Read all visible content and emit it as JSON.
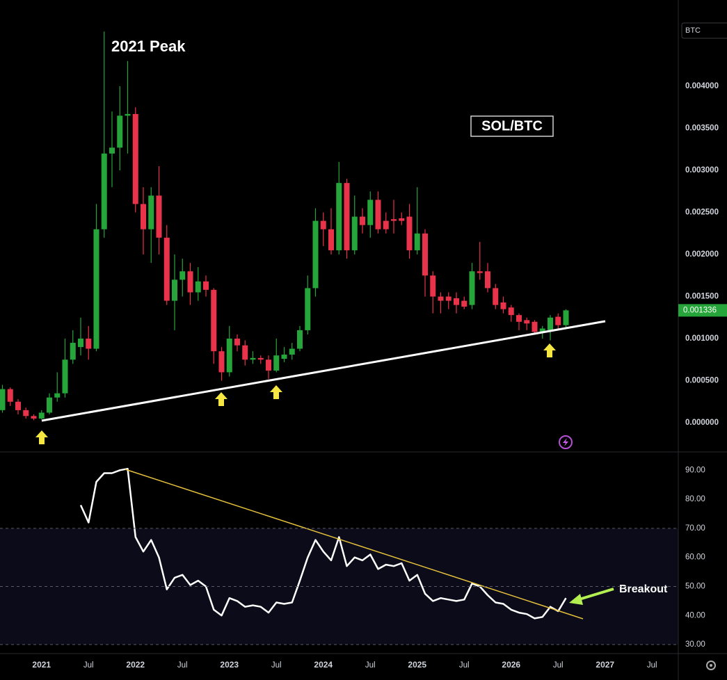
{
  "chart_data": [
    {
      "type": "candlestick",
      "title": "SOL/BTC",
      "annotation": "2021 Peak",
      "currency": "BTC",
      "up_color": "#26a63a",
      "down_color": "#e8334a",
      "x": [
        "2020-08",
        "2020-09",
        "2020-10",
        "2020-11",
        "2020-12",
        "2021-01",
        "2021-02",
        "2021-03",
        "2021-04",
        "2021-05",
        "2021-06",
        "2021-07",
        "2021-08",
        "2021-09",
        "2021-10",
        "2021-11",
        "2021-12",
        "2022-01",
        "2022-02",
        "2022-03",
        "2022-04",
        "2022-05",
        "2022-06",
        "2022-07",
        "2022-08",
        "2022-09",
        "2022-10",
        "2022-11",
        "2022-12",
        "2023-01",
        "2023-02",
        "2023-03",
        "2023-04",
        "2023-05",
        "2023-06",
        "2023-07",
        "2023-08",
        "2023-09",
        "2023-10",
        "2023-11",
        "2023-12",
        "2024-01",
        "2024-02",
        "2024-03",
        "2024-04",
        "2024-05",
        "2024-06",
        "2024-07",
        "2024-08",
        "2024-09",
        "2024-10",
        "2024-11",
        "2024-12",
        "2025-01",
        "2025-02",
        "2025-03",
        "2025-04",
        "2025-05",
        "2025-06",
        "2025-07",
        "2025-08",
        "2025-09",
        "2025-10",
        "2025-11",
        "2025-12",
        "2026-01",
        "2026-02",
        "2026-03",
        "2026-04",
        "2026-05",
        "2026-06",
        "2026-07",
        "2026-08"
      ],
      "open": [
        0.00015,
        0.0004,
        0.00025,
        0.00015,
        8e-05,
        5e-05,
        0.00012,
        0.0003,
        0.00035,
        0.00075,
        0.0009,
        0.001,
        0.00088,
        0.0023,
        0.0032,
        0.00327,
        0.00365,
        0.00367,
        0.0026,
        0.0023,
        0.0027,
        0.0022,
        0.00145,
        0.0017,
        0.0018,
        0.00155,
        0.00168,
        0.00158,
        0.00085,
        0.0006,
        0.001,
        0.00092,
        0.00075,
        0.00077,
        0.00075,
        0.00062,
        0.00076,
        0.00081,
        0.00088,
        0.0011,
        0.0016,
        0.0024,
        0.0023,
        0.00205,
        0.00285,
        0.00205,
        0.00245,
        0.00235,
        0.00265,
        0.0024,
        0.00242,
        0.00243,
        0.00245,
        0.00205,
        0.00225,
        0.00175,
        0.0015,
        0.0015,
        0.00148,
        0.00145,
        0.0014,
        0.0018,
        0.0018,
        0.0016,
        0.00143,
        0.00137,
        0.00128,
        0.00122,
        0.0012,
        0.00108,
        0.0011,
        0.00126,
        0.00116
      ],
      "high": [
        0.00045,
        0.00042,
        0.00028,
        0.00018,
        0.0001,
        0.00015,
        0.00035,
        0.0006,
        0.001,
        0.0011,
        0.00125,
        0.00115,
        0.0026,
        0.00465,
        0.0037,
        0.004,
        0.0043,
        0.00375,
        0.0028,
        0.0028,
        0.00305,
        0.00235,
        0.002,
        0.00195,
        0.0019,
        0.00185,
        0.00175,
        0.0016,
        0.0009,
        0.00115,
        0.00105,
        0.00098,
        0.00085,
        0.0008,
        0.0008,
        0.001,
        0.0009,
        0.00095,
        0.00115,
        0.00175,
        0.00255,
        0.0025,
        0.00255,
        0.0031,
        0.0029,
        0.0027,
        0.00255,
        0.00275,
        0.00275,
        0.0025,
        0.00265,
        0.0025,
        0.0026,
        0.0028,
        0.0023,
        0.0018,
        0.00155,
        0.00155,
        0.00155,
        0.0015,
        0.0019,
        0.00215,
        0.0019,
        0.00165,
        0.0015,
        0.0014,
        0.0013,
        0.00125,
        0.00122,
        0.00115,
        0.00128,
        0.0013,
        0.00135
      ],
      "low": [
        0.00012,
        0.0002,
        0.0001,
        5e-05,
        3e-05,
        4e-05,
        0.0001,
        0.00025,
        0.0003,
        0.0007,
        0.0008,
        0.00075,
        0.00085,
        0.0022,
        0.0028,
        0.003,
        0.0032,
        0.0025,
        0.002,
        0.0019,
        0.002,
        0.0014,
        0.0011,
        0.0015,
        0.0014,
        0.00145,
        0.0015,
        0.0007,
        0.0005,
        0.00055,
        0.00085,
        0.00068,
        0.0007,
        0.0007,
        0.00052,
        0.0006,
        0.00072,
        0.00075,
        0.00085,
        0.00105,
        0.0015,
        0.0021,
        0.002,
        0.002,
        0.00195,
        0.002,
        0.00225,
        0.0022,
        0.00225,
        0.00225,
        0.00225,
        0.00235,
        0.00195,
        0.002,
        0.0015,
        0.0013,
        0.0013,
        0.00135,
        0.0013,
        0.00135,
        0.00135,
        0.0017,
        0.00155,
        0.00135,
        0.0013,
        0.0012,
        0.0011,
        0.0011,
        0.00105,
        0.001,
        0.00098,
        0.00112,
        0.00112
      ],
      "close": [
        0.0004,
        0.00025,
        0.00015,
        8e-05,
        5e-05,
        0.00012,
        0.0003,
        0.00035,
        0.00075,
        0.00095,
        0.001,
        0.00088,
        0.0023,
        0.0032,
        0.00327,
        0.00365,
        0.00367,
        0.0026,
        0.0023,
        0.0027,
        0.0022,
        0.00145,
        0.0017,
        0.0018,
        0.00155,
        0.00168,
        0.00158,
        0.00085,
        0.0006,
        0.001,
        0.00092,
        0.00075,
        0.00077,
        0.00075,
        0.00062,
        0.0008,
        0.00081,
        0.00088,
        0.0011,
        0.0016,
        0.0024,
        0.0023,
        0.00205,
        0.00285,
        0.00205,
        0.00245,
        0.00235,
        0.00265,
        0.0023,
        0.0023,
        0.0024,
        0.0024,
        0.00205,
        0.00225,
        0.00175,
        0.0015,
        0.00145,
        0.00145,
        0.0014,
        0.00138,
        0.0018,
        0.00178,
        0.0016,
        0.0014,
        0.00135,
        0.00128,
        0.0012,
        0.00118,
        0.00108,
        0.00112,
        0.00125,
        0.00116,
        0.001336
      ],
      "ylim": [
        -0.000347,
        0.005025
      ],
      "yticks": [
        {
          "value": 0,
          "label": "0.000000"
        },
        {
          "value": 0.0005,
          "label": "0.000500"
        },
        {
          "value": 0.001,
          "label": "0.001000"
        },
        {
          "value": 0.0015,
          "label": "0.001500"
        },
        {
          "value": 0.002,
          "label": "0.002000"
        },
        {
          "value": 0.0025,
          "label": "0.002500"
        },
        {
          "value": 0.003,
          "label": "0.003000"
        },
        {
          "value": 0.0035,
          "label": "0.003500"
        },
        {
          "value": 0.004,
          "label": "0.004000"
        }
      ]
    },
    {
      "type": "line",
      "annotation": "Breakout",
      "color": "#ffffff",
      "x": [
        "2020-08",
        "2020-09",
        "2020-10",
        "2020-11",
        "2020-12",
        "2021-01",
        "2021-02",
        "2021-03",
        "2021-04",
        "2021-05",
        "2021-06",
        "2021-07",
        "2021-08",
        "2021-09",
        "2021-10",
        "2021-11",
        "2021-12",
        "2022-01",
        "2022-02",
        "2022-03",
        "2022-04",
        "2022-05",
        "2022-06",
        "2022-07",
        "2022-08",
        "2022-09",
        "2022-10",
        "2022-11",
        "2022-12",
        "2023-01",
        "2023-02",
        "2023-03",
        "2023-04",
        "2023-05",
        "2023-06",
        "2023-07",
        "2023-08",
        "2023-09",
        "2023-10",
        "2023-11",
        "2023-12",
        "2024-01",
        "2024-02",
        "2024-03",
        "2024-04",
        "2024-05",
        "2024-06",
        "2024-07",
        "2024-08",
        "2024-09",
        "2024-10",
        "2024-11",
        "2024-12",
        "2025-01",
        "2025-02",
        "2025-03",
        "2025-04",
        "2025-05",
        "2025-06",
        "2025-07",
        "2025-08",
        "2025-09",
        "2025-10",
        "2025-11",
        "2025-12",
        "2026-01",
        "2026-02",
        "2026-03",
        "2026-04",
        "2026-05",
        "2026-06",
        "2026-07",
        "2026-08"
      ],
      "values": [
        null,
        null,
        null,
        null,
        null,
        null,
        null,
        null,
        null,
        null,
        78,
        72,
        86,
        89,
        89,
        90,
        90.5,
        67,
        62,
        66,
        60,
        49,
        53,
        54,
        50.5,
        52,
        50,
        42,
        40,
        46,
        45,
        43,
        43.5,
        43,
        41,
        44.5,
        44,
        44.5,
        52,
        60,
        66,
        62,
        59,
        67,
        57,
        60,
        59,
        61,
        56,
        57.5,
        57,
        58,
        52,
        54,
        47.5,
        45,
        46,
        45.5,
        45,
        45.5,
        51,
        50,
        47,
        44.5,
        44,
        42,
        41,
        40.5,
        39,
        39.5,
        43,
        41.5,
        46
      ],
      "levels": [
        70,
        50,
        30
      ],
      "ylim": [
        26.9,
        96.3
      ],
      "yticks": [
        {
          "value": 30,
          "label": "30.00"
        },
        {
          "value": 40,
          "label": "40.00"
        },
        {
          "value": 50,
          "label": "50.00"
        },
        {
          "value": 60,
          "label": "60.00"
        },
        {
          "value": 70,
          "label": "70.00"
        },
        {
          "value": 80,
          "label": "80.00"
        },
        {
          "value": 90,
          "label": "90.00"
        }
      ],
      "xticks": [
        {
          "value": "2021-01",
          "label": "2021"
        },
        {
          "value": "2021-07",
          "label": "Jul"
        },
        {
          "value": "2022-01",
          "label": "2022"
        },
        {
          "value": "2022-07",
          "label": "Jul"
        },
        {
          "value": "2023-01",
          "label": "2023"
        },
        {
          "value": "2023-07",
          "label": "Jul"
        },
        {
          "value": "2024-01",
          "label": "2024"
        },
        {
          "value": "2024-07",
          "label": "Jul"
        },
        {
          "value": "2025-01",
          "label": "2025"
        },
        {
          "value": "2025-07",
          "label": "Jul"
        },
        {
          "value": "2026-01",
          "label": "2026"
        },
        {
          "value": "2026-07",
          "label": "Jul"
        },
        {
          "value": "2027-01",
          "label": "2027"
        },
        {
          "value": "2027-07",
          "label": "Jul"
        }
      ]
    }
  ]
}
